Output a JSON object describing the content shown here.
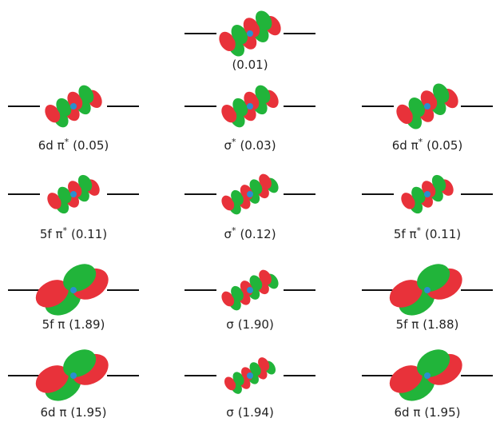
{
  "orbitals": [
    {
      "occupation": "(0.01)"
    },
    {
      "symbol": "6d π",
      "star": "*",
      "occupation": "(0.05)"
    },
    {
      "symbol": "σ",
      "star": "*",
      "occupation": "(0.03)"
    },
    {
      "symbol": "6d π",
      "star": "*",
      "occupation": "(0.05)"
    },
    {
      "symbol": "5f π",
      "star": "*",
      "occupation": "(0.11)"
    },
    {
      "symbol": "σ",
      "star": "*",
      "occupation": "(0.12)"
    },
    {
      "symbol": "5f π",
      "star": "*",
      "occupation": "(0.11)"
    },
    {
      "symbol": "5f π",
      "occupation": "(1.89)"
    },
    {
      "symbol": "σ",
      "occupation": "(1.90)"
    },
    {
      "symbol": "5f π",
      "occupation": "(1.88)"
    },
    {
      "symbol": "6d π",
      "occupation": "(1.95)"
    },
    {
      "symbol": "σ",
      "occupation": "(1.94)"
    },
    {
      "symbol": "6d π",
      "occupation": "(1.95)"
    }
  ]
}
